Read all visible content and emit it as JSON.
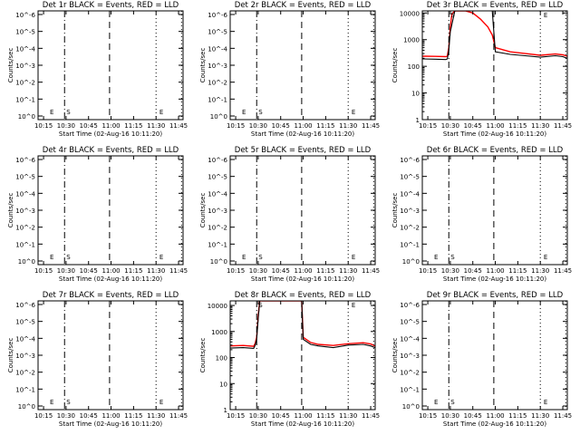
{
  "colors": {
    "events": "#000000",
    "lld": "#ff0000",
    "axis": "#000000",
    "background": "#ffffff"
  },
  "chart_data": [
    {
      "type": "line",
      "title": "Det 1r BLACK = Events, RED = LLD",
      "xlabel": "Start Time (02-Aug-16 10:11:20)",
      "ylabel": "Counts/sec",
      "x_ticks": [
        "10:15",
        "10:30",
        "10:45",
        "11:00",
        "11:15",
        "11:30",
        "11:45"
      ],
      "y_scale": "log",
      "y_ticks": [
        "10^0",
        "10^-1",
        "10^-2",
        "10^-3",
        "10^-4",
        "10^-5",
        "10^-6"
      ],
      "y_range": [
        1,
        1e-06
      ],
      "markers": [
        {
          "label": "E",
          "time": "10:18"
        },
        {
          "label": "S",
          "time": "10:29"
        },
        {
          "label": "E",
          "time": "11:31"
        }
      ],
      "series": []
    },
    {
      "type": "line",
      "title": "Det 2r BLACK = Events, RED = LLD",
      "xlabel": "Start Time (02-Aug-16 10:11:20)",
      "ylabel": "Counts/sec",
      "x_ticks": [
        "10:15",
        "10:30",
        "10:45",
        "11:00",
        "11:15",
        "11:30",
        "11:45"
      ],
      "y_scale": "log",
      "y_ticks": [
        "10^0",
        "10^-1",
        "10^-2",
        "10^-3",
        "10^-4",
        "10^-5",
        "10^-6"
      ],
      "y_range": [
        1,
        1e-06
      ],
      "markers": [
        {
          "label": "E",
          "time": "10:18"
        },
        {
          "label": "S",
          "time": "10:29"
        },
        {
          "label": "E",
          "time": "11:31"
        }
      ],
      "series": []
    },
    {
      "type": "line",
      "title": "Det 3r BLACK = Events, RED = LLD",
      "xlabel": "Start Time (02-Aug-16 10:11:20)",
      "ylabel": "Counts/sec",
      "x_ticks": [
        "10:15",
        "10:30",
        "10:45",
        "11:00",
        "11:15",
        "11:30",
        "11:45"
      ],
      "y_scale": "log",
      "y_ticks": [
        "1",
        "10",
        "100",
        "1000",
        "10000"
      ],
      "y_range": [
        1,
        12000
      ],
      "markers": [
        {
          "label": "S",
          "time": "10:29"
        },
        {
          "label": "E",
          "time": "11:31"
        }
      ],
      "series": [
        {
          "name": "Events",
          "x": [
            "10:11",
            "10:20",
            "10:27",
            "10:28",
            "10:29",
            "10:30",
            "10:33",
            "10:37",
            "10:40",
            "10:45",
            "10:50",
            "10:58",
            "10:59",
            "11:00",
            "11:10",
            "11:20",
            "11:30",
            "11:40",
            "11:45",
            "11:48"
          ],
          "y": [
            190,
            185,
            180,
            190,
            400,
            2000,
            12000,
            12000,
            12000,
            12000,
            12000,
            12000,
            2000,
            350,
            280,
            250,
            220,
            250,
            230,
            200
          ]
        },
        {
          "name": "LLD",
          "x": [
            "10:11",
            "10:20",
            "10:27",
            "10:28",
            "10:29",
            "10:30",
            "10:31",
            "10:33",
            "10:37",
            "10:40",
            "10:45",
            "10:50",
            "10:55",
            "10:58",
            "11:00",
            "11:10",
            "11:20",
            "11:30",
            "11:40",
            "11:45",
            "11:48"
          ],
          "y": [
            240,
            235,
            230,
            240,
            500,
            3000,
            9000,
            12000,
            12000,
            12000,
            10000,
            6000,
            3000,
            1500,
            500,
            350,
            300,
            260,
            290,
            270,
            240
          ]
        }
      ]
    },
    {
      "type": "line",
      "title": "Det 4r BLACK = Events, RED = LLD",
      "xlabel": "Start Time (02-Aug-16 10:11:20)",
      "ylabel": "Counts/sec",
      "x_ticks": [
        "10:15",
        "10:30",
        "10:45",
        "11:00",
        "11:15",
        "11:30",
        "11:45"
      ],
      "y_scale": "log",
      "y_ticks": [
        "10^0",
        "10^-1",
        "10^-2",
        "10^-3",
        "10^-4",
        "10^-5",
        "10^-6"
      ],
      "y_range": [
        1,
        1e-06
      ],
      "markers": [
        {
          "label": "E",
          "time": "10:18"
        },
        {
          "label": "S",
          "time": "10:29"
        },
        {
          "label": "E",
          "time": "11:31"
        }
      ],
      "series": []
    },
    {
      "type": "line",
      "title": "Det 5r BLACK = Events, RED = LLD",
      "xlabel": "Start Time (02-Aug-16 10:11:20)",
      "ylabel": "Counts/sec",
      "x_ticks": [
        "10:15",
        "10:30",
        "10:45",
        "11:00",
        "11:15",
        "11:30",
        "11:45"
      ],
      "y_scale": "log",
      "y_ticks": [
        "10^0",
        "10^-1",
        "10^-2",
        "10^-3",
        "10^-4",
        "10^-5",
        "10^-6"
      ],
      "y_range": [
        1,
        1e-06
      ],
      "markers": [
        {
          "label": "E",
          "time": "10:18"
        },
        {
          "label": "S",
          "time": "10:29"
        },
        {
          "label": "E",
          "time": "11:31"
        }
      ],
      "series": []
    },
    {
      "type": "line",
      "title": "Det 6r BLACK = Events, RED = LLD",
      "xlabel": "Start Time (02-Aug-16 10:11:20)",
      "ylabel": "Counts/sec",
      "x_ticks": [
        "10:15",
        "10:30",
        "10:45",
        "11:00",
        "11:15",
        "11:30",
        "11:45"
      ],
      "y_scale": "log",
      "y_ticks": [
        "10^0",
        "10^-1",
        "10^-2",
        "10^-3",
        "10^-4",
        "10^-5",
        "10^-6"
      ],
      "y_range": [
        1,
        1e-06
      ],
      "markers": [
        {
          "label": "E",
          "time": "10:18"
        },
        {
          "label": "S",
          "time": "10:29"
        },
        {
          "label": "E",
          "time": "11:31"
        }
      ],
      "series": []
    },
    {
      "type": "line",
      "title": "Det 7r BLACK = Events, RED = LLD",
      "xlabel": "Start Time (02-Aug-16 10:11:20)",
      "ylabel": "Counts/sec",
      "x_ticks": [
        "10:15",
        "10:30",
        "10:45",
        "11:00",
        "11:15",
        "11:30",
        "11:45"
      ],
      "y_scale": "log",
      "y_ticks": [
        "10^0",
        "10^-1",
        "10^-2",
        "10^-3",
        "10^-4",
        "10^-5",
        "10^-6"
      ],
      "y_range": [
        1,
        1e-06
      ],
      "markers": [
        {
          "label": "E",
          "time": "10:18"
        },
        {
          "label": "S",
          "time": "10:29"
        },
        {
          "label": "E",
          "time": "11:31"
        }
      ],
      "series": []
    },
    {
      "type": "line",
      "title": "Det 8r BLACK = Events, RED = LLD",
      "xlabel": "Start Time (02-Aug-16 10:11:20)",
      "ylabel": "Counts/sec",
      "x_ticks": [
        "10:15",
        "10:30",
        "10:45",
        "11:00",
        "11:15",
        "11:30",
        "11:45"
      ],
      "y_scale": "log",
      "y_ticks": [
        "1",
        "10",
        "100",
        "1000",
        "10000"
      ],
      "y_range": [
        1,
        15000
      ],
      "markers": [
        {
          "label": "S",
          "time": "10:29"
        },
        {
          "label": "E",
          "time": "11:31"
        }
      ],
      "series": [
        {
          "name": "Events",
          "x": [
            "10:11",
            "10:20",
            "10:27",
            "10:28",
            "10:29",
            "10:30",
            "10:31",
            "10:45",
            "10:50",
            "10:59",
            "11:00",
            "11:05",
            "11:10",
            "11:20",
            "11:30",
            "11:40",
            "11:45",
            "11:48"
          ],
          "y": [
            230,
            240,
            225,
            300,
            500,
            3000,
            15000,
            15000,
            15000,
            15000,
            500,
            320,
            280,
            240,
            300,
            320,
            280,
            240
          ]
        },
        {
          "name": "LLD",
          "x": [
            "10:11",
            "10:20",
            "10:27",
            "10:28",
            "10:29",
            "10:30",
            "10:31",
            "10:45",
            "10:50",
            "10:59",
            "11:00",
            "11:05",
            "11:10",
            "11:20",
            "11:30",
            "11:40",
            "11:45",
            "11:48"
          ],
          "y": [
            280,
            290,
            270,
            350,
            600,
            4000,
            15000,
            15000,
            15000,
            15000,
            600,
            380,
            320,
            290,
            340,
            370,
            330,
            280
          ]
        }
      ]
    },
    {
      "type": "line",
      "title": "Det 9r BLACK = Events, RED = LLD",
      "xlabel": "Start Time (02-Aug-16 10:11:20)",
      "ylabel": "Counts/sec",
      "x_ticks": [
        "10:15",
        "10:30",
        "10:45",
        "11:00",
        "11:15",
        "11:30",
        "11:45"
      ],
      "y_scale": "log",
      "y_ticks": [
        "10^0",
        "10^-1",
        "10^-2",
        "10^-3",
        "10^-4",
        "10^-5",
        "10^-6"
      ],
      "y_range": [
        1,
        1e-06
      ],
      "markers": [
        {
          "label": "E",
          "time": "10:18"
        },
        {
          "label": "S",
          "time": "10:29"
        },
        {
          "label": "E",
          "time": "11:31"
        }
      ],
      "series": []
    }
  ]
}
